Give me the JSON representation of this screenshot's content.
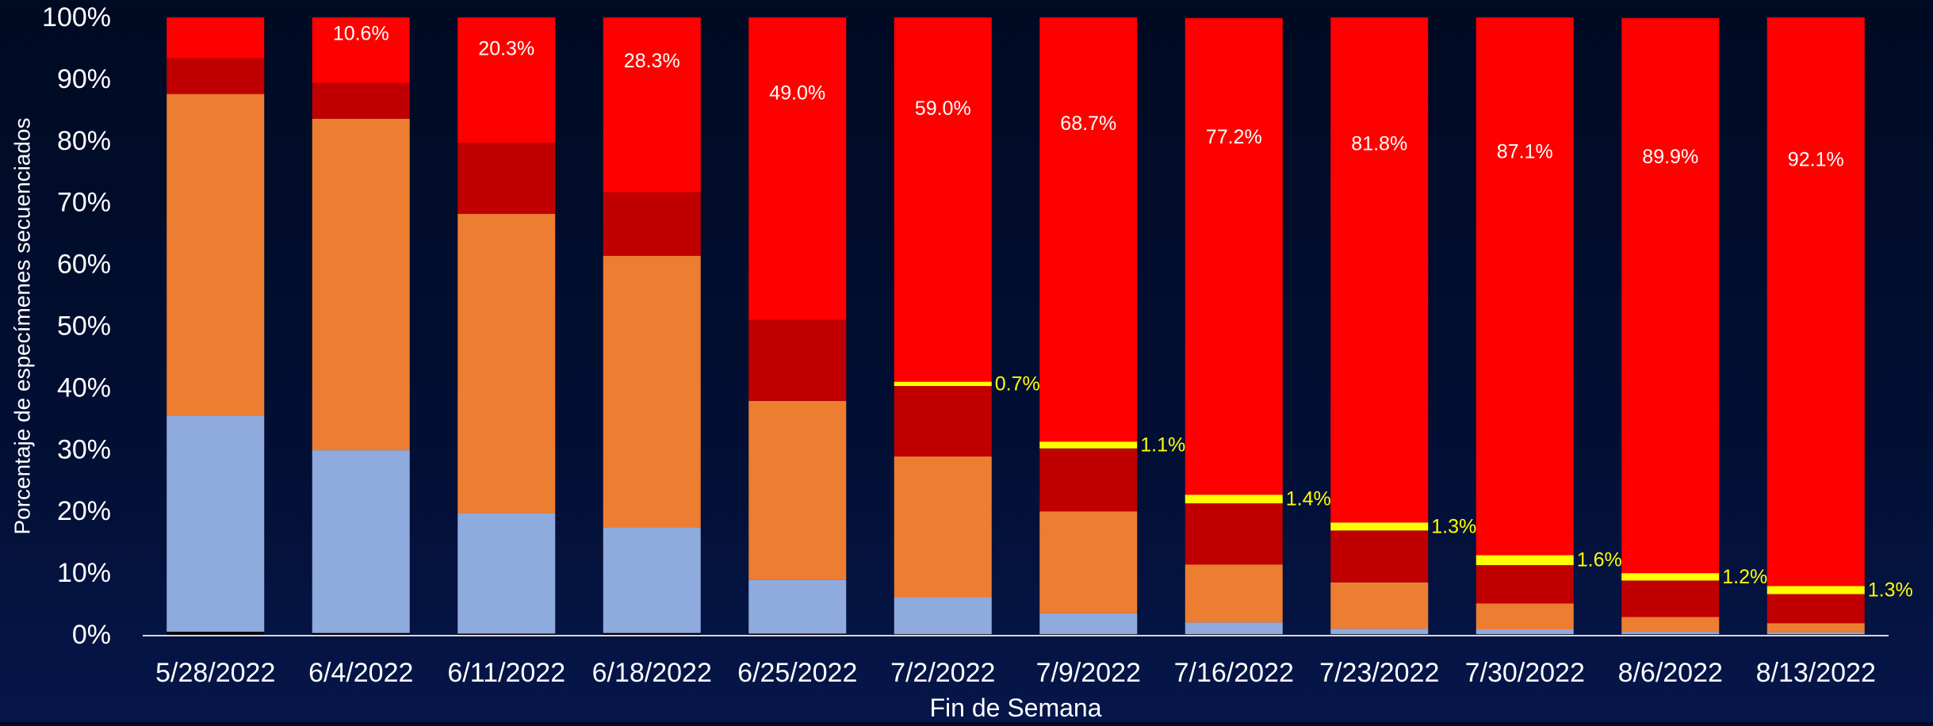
{
  "chart_data": {
    "type": "bar",
    "stacked": true,
    "percent_stacked": true,
    "xlabel": "Fin de Semana",
    "ylabel": "Porcentaje de especímenes secuenciados",
    "ylim": [
      0,
      100
    ],
    "y_ticks": [
      "0%",
      "10%",
      "20%",
      "30%",
      "40%",
      "50%",
      "60%",
      "70%",
      "80%",
      "90%",
      "100%"
    ],
    "categories": [
      "5/28/2022",
      "6/4/2022",
      "6/11/2022",
      "6/18/2022",
      "6/25/2022",
      "7/2/2022",
      "7/9/2022",
      "7/16/2022",
      "7/23/2022",
      "7/30/2022",
      "8/6/2022",
      "8/13/2022"
    ],
    "series": [
      {
        "color": "#000000",
        "values": [
          0.5,
          0.3,
          0.2,
          0.3,
          0.2,
          0.1,
          0.1,
          0.1,
          0.1,
          0.1,
          0.1,
          0.1
        ]
      },
      {
        "color": "#8faadc",
        "values": [
          35.0,
          29.6,
          19.5,
          17.1,
          8.7,
          6.0,
          3.4,
          1.9,
          0.9,
          0.8,
          0.4,
          0.3
        ]
      },
      {
        "color": "#ed7d31",
        "values": [
          52.1,
          53.7,
          48.5,
          44.0,
          29.0,
          22.8,
          16.5,
          9.4,
          7.5,
          4.2,
          2.4,
          1.5
        ]
      },
      {
        "color": "#c00000",
        "values": [
          5.8,
          5.8,
          11.5,
          10.3,
          13.1,
          11.4,
          10.2,
          9.9,
          8.4,
          6.2,
          5.9,
          4.7
        ]
      },
      {
        "color": "#ffff00",
        "values": [
          0,
          0,
          0,
          0,
          0,
          0.7,
          1.1,
          1.4,
          1.3,
          1.6,
          1.2,
          1.3
        ],
        "labels": [
          "",
          "",
          "",
          "",
          "",
          "0.7%",
          "1.1%",
          "1.4%",
          "1.3%",
          "1.6%",
          "1.2%",
          "1.3%"
        ]
      },
      {
        "color": "#ff0000",
        "values": [
          6.6,
          10.6,
          20.3,
          28.3,
          49.0,
          59.0,
          68.7,
          77.2,
          81.8,
          87.1,
          89.9,
          92.1
        ],
        "labels": [
          "",
          "10.6%",
          "20.3%",
          "28.3%",
          "49.0%",
          "59.0%",
          "68.7%",
          "77.2%",
          "81.8%",
          "87.1%",
          "89.9%",
          "92.1%"
        ]
      }
    ],
    "colors": {
      "axis_text": "#ffffff",
      "label_on_red": "#ffffff",
      "label_yellow": "#ffff00",
      "axis_line": "#d9d9d9"
    }
  }
}
